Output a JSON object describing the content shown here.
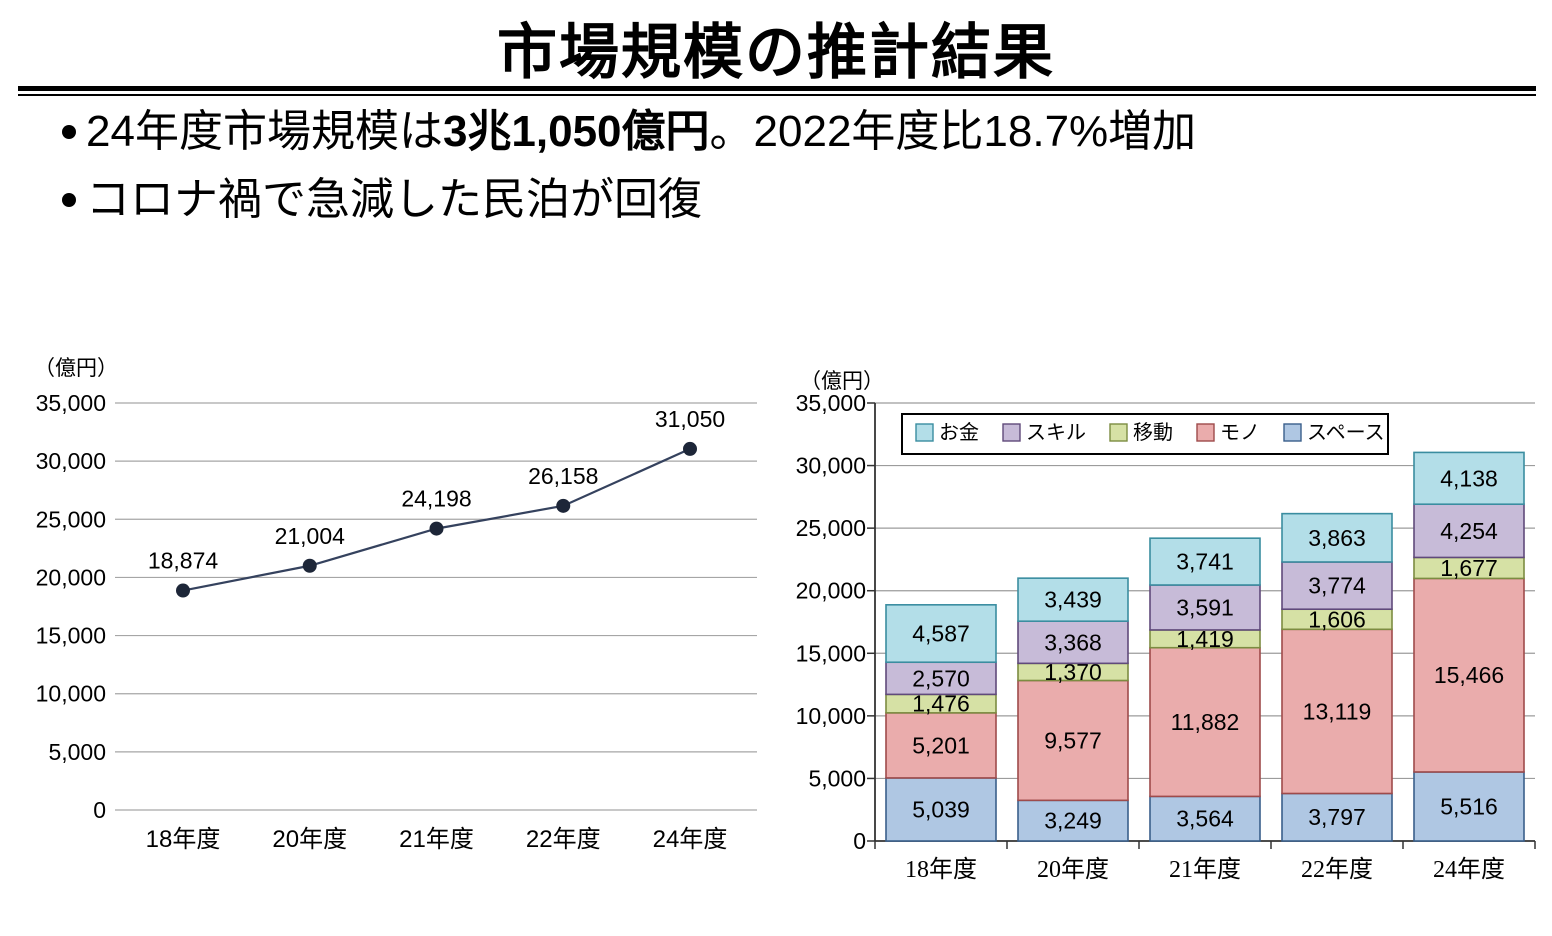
{
  "title": "市場規模の推計結果",
  "bullets": [
    {
      "pre": "24年度市場規模は",
      "bold": "3兆1,050億円",
      "post": "。2022年度比18.7%増加"
    },
    {
      "pre": "コロナ禍で急減した民泊が回復",
      "bold": "",
      "post": ""
    }
  ],
  "chart_data": [
    {
      "type": "line",
      "title": "",
      "unit_label": "（億円）",
      "categories": [
        "18年度",
        "20年度",
        "21年度",
        "22年度",
        "24年度"
      ],
      "values": [
        18874,
        21004,
        24198,
        26158,
        31050
      ],
      "xlabel": "",
      "ylabel": "（億円）",
      "ylim": [
        0,
        35000
      ],
      "ytick_step": 5000,
      "grid": true,
      "legend_position": "none",
      "line_color": "#35425e",
      "marker_color": "#1d2638"
    },
    {
      "type": "bar",
      "stacked": true,
      "title": "",
      "unit_label": "（億円）",
      "categories": [
        "18年度",
        "20年度",
        "21年度",
        "22年度",
        "24年度"
      ],
      "series": [
        {
          "name": "スペース",
          "values": [
            5039,
            3249,
            3564,
            3797,
            5516
          ],
          "fill": "#AFC7E3",
          "stroke": "#3A5F8B"
        },
        {
          "name": "モノ",
          "values": [
            5201,
            9577,
            11882,
            13119,
            15466
          ],
          "fill": "#EAACAC",
          "stroke": "#9E4B4B"
        },
        {
          "name": "移動",
          "values": [
            1476,
            1370,
            1419,
            1606,
            1677
          ],
          "fill": "#D6E1A5",
          "stroke": "#7C8C41"
        },
        {
          "name": "スキル",
          "values": [
            2570,
            3368,
            3591,
            3774,
            4254
          ],
          "fill": "#C7BBD8",
          "stroke": "#604A7B"
        },
        {
          "name": "お金",
          "values": [
            4587,
            3439,
            3741,
            3863,
            4138
          ],
          "fill": "#B3DEE8",
          "stroke": "#3A8DA0"
        }
      ],
      "legend_order": [
        "お金",
        "スキル",
        "移動",
        "モノ",
        "スペース"
      ],
      "xlabel": "",
      "ylabel": "（億円）",
      "ylim": [
        0,
        35000
      ],
      "ytick_step": 5000,
      "grid": true,
      "legend_position": "top"
    }
  ]
}
